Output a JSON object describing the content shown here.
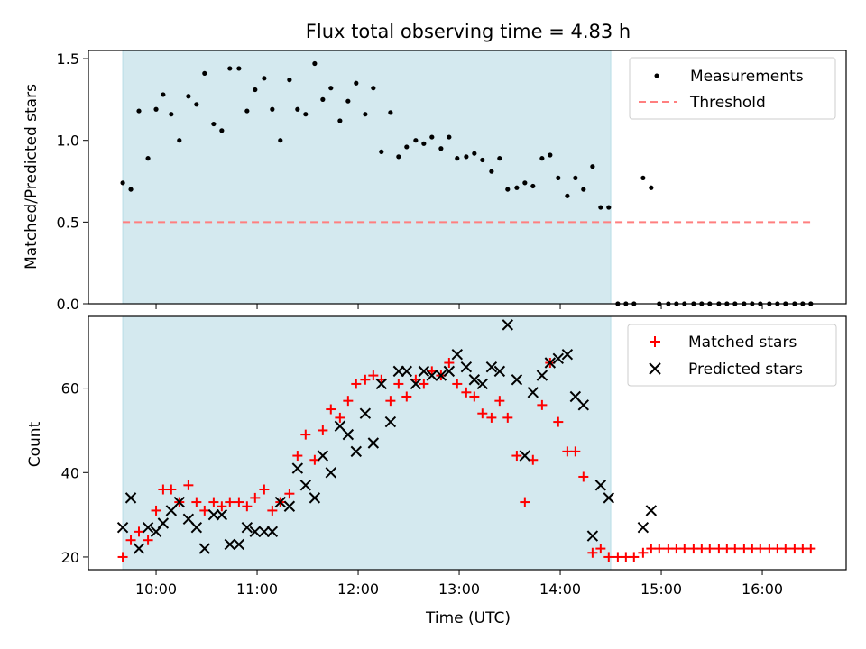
{
  "chart_data": [
    {
      "type": "scatter",
      "title": "Flux total observing time = 4.83 h",
      "xlabel": "",
      "ylabel": "Matched/Predicted stars",
      "ylim": [
        0,
        1.55
      ],
      "xlim": [
        9.33,
        16.83
      ],
      "yticks": [
        0.0,
        0.5,
        1.0,
        1.5
      ],
      "ytick_labels": [
        "0.0",
        "0.5",
        "1.0",
        "1.5"
      ],
      "shaded_span": [
        9.67,
        14.5
      ],
      "threshold": 0.5,
      "threshold_range": [
        9.67,
        16.5
      ],
      "legend_position": "top-right",
      "legend": [
        "Measurements",
        "Threshold"
      ],
      "series": [
        {
          "name": "Measurements",
          "x": [
            9.67,
            9.75,
            9.83,
            9.92,
            10.0,
            10.07,
            10.15,
            10.23,
            10.32,
            10.4,
            10.48,
            10.57,
            10.65,
            10.73,
            10.82,
            10.9,
            10.98,
            11.07,
            11.15,
            11.23,
            11.32,
            11.4,
            11.48,
            11.57,
            11.65,
            11.73,
            11.82,
            11.9,
            11.98,
            12.07,
            12.15,
            12.23,
            12.32,
            12.4,
            12.48,
            12.57,
            12.65,
            12.73,
            12.82,
            12.9,
            12.98,
            13.07,
            13.15,
            13.23,
            13.32,
            13.4,
            13.48,
            13.57,
            13.65,
            13.73,
            13.82,
            13.9,
            13.98,
            14.07,
            14.15,
            14.23,
            14.32,
            14.4,
            14.48,
            14.57,
            14.65,
            14.73,
            14.82,
            14.9,
            14.98,
            15.07,
            15.15,
            15.23,
            15.32,
            15.4,
            15.48,
            15.57,
            15.65,
            15.73,
            15.82,
            15.9,
            15.98,
            16.07,
            16.15,
            16.23,
            16.32,
            16.4,
            16.48
          ],
          "y": [
            0.74,
            0.7,
            1.18,
            0.89,
            1.19,
            1.28,
            1.16,
            1.0,
            1.27,
            1.22,
            1.41,
            1.1,
            1.06,
            1.44,
            1.44,
            1.18,
            1.31,
            1.38,
            1.19,
            1.0,
            1.37,
            1.19,
            1.16,
            1.47,
            1.25,
            1.32,
            1.12,
            1.24,
            1.35,
            1.16,
            1.32,
            0.93,
            1.17,
            0.9,
            0.96,
            1.0,
            0.98,
            1.02,
            0.95,
            1.02,
            0.89,
            0.9,
            0.92,
            0.88,
            0.81,
            0.89,
            0.7,
            0.71,
            0.74,
            0.72,
            0.89,
            0.91,
            0.77,
            0.66,
            0.77,
            0.7,
            0.84,
            0.59,
            0.59,
            0.0,
            0.0,
            0.0,
            0.77,
            0.71,
            0.0,
            0.0,
            0.0,
            0.0,
            0.0,
            0.0,
            0.0,
            0.0,
            0.0,
            0.0,
            0.0,
            0.0,
            0.0,
            0.0,
            0.0,
            0.0,
            0.0,
            0.0,
            0.0
          ]
        }
      ]
    },
    {
      "type": "scatter",
      "title": "",
      "xlabel": "Time (UTC)",
      "ylabel": "Count",
      "ylim": [
        17,
        77
      ],
      "xlim": [
        9.33,
        16.83
      ],
      "yticks": [
        20,
        40,
        60
      ],
      "ytick_labels": [
        "20",
        "40",
        "60"
      ],
      "xticks": [
        10,
        11,
        12,
        13,
        14,
        15,
        16
      ],
      "xtick_labels": [
        "10:00",
        "11:00",
        "12:00",
        "13:00",
        "14:00",
        "15:00",
        "16:00"
      ],
      "shaded_span": [
        9.67,
        14.5
      ],
      "legend_position": "top-right",
      "legend": [
        "Matched stars",
        "Predicted stars"
      ],
      "series": [
        {
          "name": "Matched stars",
          "x": [
            9.67,
            9.75,
            9.83,
            9.92,
            10.0,
            10.07,
            10.15,
            10.23,
            10.32,
            10.4,
            10.48,
            10.57,
            10.65,
            10.73,
            10.82,
            10.9,
            10.98,
            11.07,
            11.15,
            11.23,
            11.32,
            11.4,
            11.48,
            11.57,
            11.65,
            11.73,
            11.82,
            11.9,
            11.98,
            12.07,
            12.15,
            12.23,
            12.32,
            12.4,
            12.48,
            12.57,
            12.65,
            12.73,
            12.82,
            12.9,
            12.98,
            13.07,
            13.15,
            13.23,
            13.32,
            13.4,
            13.48,
            13.57,
            13.65,
            13.73,
            13.82,
            13.9,
            13.98,
            14.07,
            14.15,
            14.23,
            14.32,
            14.4,
            14.48,
            14.57,
            14.65,
            14.73,
            14.82,
            14.9,
            14.98,
            15.07,
            15.15,
            15.23,
            15.32,
            15.4,
            15.48,
            15.57,
            15.65,
            15.73,
            15.82,
            15.9,
            15.98,
            16.07,
            16.15,
            16.23,
            16.32,
            16.4,
            16.48
          ],
          "y": [
            20,
            24,
            26,
            24,
            31,
            36,
            36,
            33,
            37,
            33,
            31,
            33,
            32,
            33,
            33,
            32,
            34,
            36,
            31,
            33,
            35,
            44,
            49,
            43,
            50,
            55,
            53,
            57,
            61,
            62,
            63,
            62,
            57,
            61,
            58,
            62,
            61,
            64,
            63,
            66,
            61,
            59,
            58,
            54,
            53,
            57,
            53,
            44,
            33,
            43,
            56,
            66,
            52,
            45,
            45,
            39,
            21,
            22,
            20,
            20,
            20,
            20,
            21,
            22,
            22,
            22,
            22,
            22,
            22,
            22,
            22,
            22,
            22,
            22,
            22,
            22,
            22,
            22,
            22,
            22,
            22,
            22,
            22
          ]
        },
        {
          "name": "Predicted stars",
          "x": [
            9.67,
            9.75,
            9.83,
            9.92,
            10.0,
            10.07,
            10.15,
            10.23,
            10.32,
            10.4,
            10.48,
            10.57,
            10.65,
            10.73,
            10.82,
            10.9,
            10.98,
            11.07,
            11.15,
            11.23,
            11.32,
            11.4,
            11.48,
            11.57,
            11.65,
            11.73,
            11.82,
            11.9,
            11.98,
            12.07,
            12.15,
            12.23,
            12.32,
            12.4,
            12.48,
            12.57,
            12.65,
            12.73,
            12.82,
            12.9,
            12.98,
            13.07,
            13.15,
            13.23,
            13.32,
            13.4,
            13.48,
            13.57,
            13.65,
            13.73,
            13.82,
            13.9,
            13.98,
            14.07,
            14.15,
            14.23,
            14.32,
            14.4,
            14.48,
            14.82,
            14.9
          ],
          "y": [
            27,
            34,
            22,
            27,
            26,
            28,
            31,
            33,
            29,
            27,
            22,
            30,
            30,
            23,
            23,
            27,
            26,
            26,
            26,
            33,
            32,
            41,
            37,
            34,
            44,
            40,
            51,
            49,
            45,
            54,
            47,
            61,
            52,
            64,
            64,
            61,
            64,
            63,
            63,
            64,
            68,
            65,
            62,
            61,
            65,
            64,
            75,
            62,
            44,
            59,
            63,
            66,
            67,
            68,
            58,
            56,
            25,
            37,
            34,
            27,
            31
          ]
        }
      ]
    }
  ],
  "colors": {
    "shade": "#d4e9ef",
    "threshold": "#ff7f7f",
    "matched": "#ff0000",
    "predicted": "#000000",
    "measurement": "#000000"
  }
}
